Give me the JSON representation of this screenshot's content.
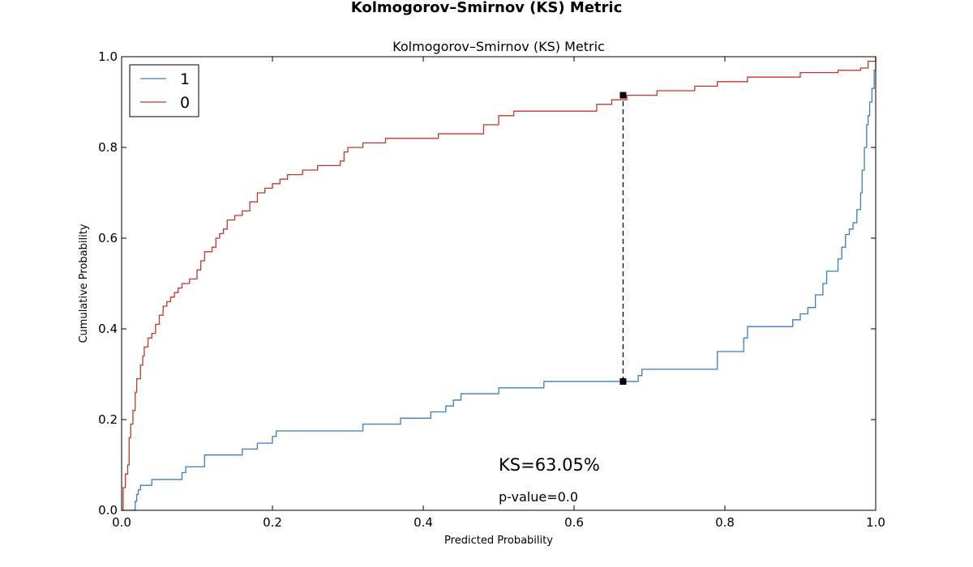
{
  "chart_data": {
    "type": "line",
    "suptitle": "Kolmogorov–Smirnov (KS) Metric",
    "title": "Kolmogorov–Smirnov (KS) Metric",
    "xlabel": "Predicted Probability",
    "ylabel": "Cumulative Probability",
    "xlim": [
      0.0,
      1.0
    ],
    "ylim": [
      0.0,
      1.0
    ],
    "xticks": [
      "0.0",
      "0.2",
      "0.4",
      "0.6",
      "0.8",
      "1.0"
    ],
    "yticks": [
      "0.0",
      "0.2",
      "0.4",
      "0.6",
      "0.8",
      "1.0"
    ],
    "grid": false,
    "legend_position": "top-left",
    "series": [
      {
        "name": "1",
        "color": "#3a7fc0",
        "x": [
          0.0,
          0.017,
          0.018,
          0.02,
          0.022,
          0.025,
          0.03,
          0.04,
          0.07,
          0.08,
          0.085,
          0.1,
          0.11,
          0.16,
          0.18,
          0.2,
          0.205,
          0.21,
          0.32,
          0.37,
          0.41,
          0.43,
          0.44,
          0.45,
          0.46,
          0.5,
          0.52,
          0.56,
          0.66,
          0.685,
          0.69,
          0.78,
          0.79,
          0.82,
          0.825,
          0.83,
          0.89,
          0.9,
          0.91,
          0.92,
          0.93,
          0.935,
          0.945,
          0.95,
          0.955,
          0.96,
          0.965,
          0.97,
          0.975,
          0.98,
          0.982,
          0.985,
          0.988,
          0.99,
          0.992,
          0.995,
          0.998,
          1.0
        ],
        "y": [
          0.0,
          0.0,
          0.02,
          0.035,
          0.045,
          0.055,
          0.055,
          0.068,
          0.068,
          0.083,
          0.096,
          0.096,
          0.122,
          0.135,
          0.148,
          0.163,
          0.175,
          0.175,
          0.19,
          0.203,
          0.217,
          0.23,
          0.243,
          0.257,
          0.257,
          0.27,
          0.27,
          0.284,
          0.284,
          0.297,
          0.311,
          0.311,
          0.35,
          0.35,
          0.38,
          0.405,
          0.42,
          0.433,
          0.447,
          0.475,
          0.5,
          0.527,
          0.527,
          0.554,
          0.58,
          0.608,
          0.62,
          0.634,
          0.663,
          0.7,
          0.75,
          0.8,
          0.85,
          0.87,
          0.9,
          0.93,
          0.97,
          1.0
        ]
      },
      {
        "name": "0",
        "color": "#c0392b",
        "x": [
          0.0,
          0.002,
          0.005,
          0.008,
          0.01,
          0.012,
          0.015,
          0.018,
          0.02,
          0.025,
          0.028,
          0.03,
          0.035,
          0.04,
          0.045,
          0.05,
          0.055,
          0.06,
          0.065,
          0.07,
          0.075,
          0.08,
          0.09,
          0.1,
          0.105,
          0.11,
          0.12,
          0.125,
          0.13,
          0.135,
          0.14,
          0.15,
          0.16,
          0.17,
          0.18,
          0.19,
          0.2,
          0.21,
          0.22,
          0.24,
          0.26,
          0.29,
          0.295,
          0.3,
          0.32,
          0.35,
          0.42,
          0.48,
          0.5,
          0.52,
          0.63,
          0.65,
          0.67,
          0.71,
          0.76,
          0.79,
          0.83,
          0.9,
          0.95,
          0.98,
          0.99,
          1.0
        ],
        "y": [
          0.0,
          0.05,
          0.08,
          0.1,
          0.16,
          0.19,
          0.22,
          0.26,
          0.29,
          0.32,
          0.34,
          0.36,
          0.38,
          0.39,
          0.41,
          0.43,
          0.45,
          0.46,
          0.47,
          0.48,
          0.49,
          0.5,
          0.51,
          0.53,
          0.55,
          0.57,
          0.58,
          0.6,
          0.61,
          0.62,
          0.64,
          0.65,
          0.66,
          0.68,
          0.7,
          0.71,
          0.72,
          0.73,
          0.74,
          0.75,
          0.76,
          0.77,
          0.79,
          0.8,
          0.81,
          0.82,
          0.83,
          0.85,
          0.87,
          0.88,
          0.895,
          0.905,
          0.915,
          0.925,
          0.935,
          0.945,
          0.955,
          0.965,
          0.97,
          0.975,
          0.99,
          1.0
        ]
      }
    ],
    "ks_line": {
      "x": 0.665,
      "y_low": 0.284,
      "y_high": 0.915
    },
    "annotations": {
      "ks_text": "KS=63.05%",
      "ks_pos": [
        0.5,
        0.1
      ],
      "p_text": "p-value=0.0",
      "p_pos": [
        0.5,
        0.03
      ]
    }
  }
}
